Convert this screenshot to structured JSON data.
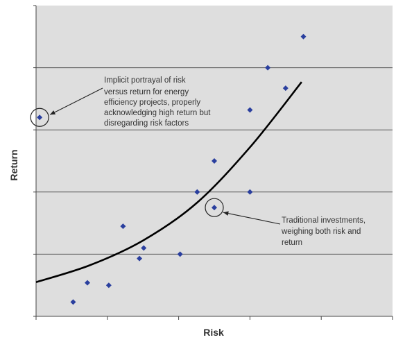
{
  "chart_data": {
    "type": "scatter",
    "xlabel": "Risk",
    "ylabel": "Return",
    "xlim": [
      0,
      10
    ],
    "ylim": [
      0,
      5
    ],
    "grid": "horizontal",
    "colors": {
      "plot_background": "#dedede",
      "points": "#2a3f9e",
      "curve": "#000000",
      "gridlines": "#555555"
    },
    "points": [
      {
        "x": 0.1,
        "y": 3.2
      },
      {
        "x": 1.04,
        "y": 0.23
      },
      {
        "x": 1.44,
        "y": 0.54
      },
      {
        "x": 2.04,
        "y": 0.5
      },
      {
        "x": 2.44,
        "y": 1.45
      },
      {
        "x": 2.9,
        "y": 0.93
      },
      {
        "x": 3.02,
        "y": 1.1
      },
      {
        "x": 4.04,
        "y": 1.0
      },
      {
        "x": 4.52,
        "y": 2.0
      },
      {
        "x": 5.0,
        "y": 2.5
      },
      {
        "x": 5.0,
        "y": 1.75
      },
      {
        "x": 6.0,
        "y": 2.0
      },
      {
        "x": 6.0,
        "y": 3.32
      },
      {
        "x": 6.5,
        "y": 4.0
      },
      {
        "x": 7.0,
        "y": 3.67
      },
      {
        "x": 7.5,
        "y": 4.5
      }
    ],
    "curve": {
      "type": "exponential",
      "points": [
        [
          0,
          0.55
        ],
        [
          1.5,
          0.82
        ],
        [
          3,
          1.22
        ],
        [
          4.5,
          1.82
        ],
        [
          6,
          2.72
        ],
        [
          7.45,
          3.77
        ]
      ]
    },
    "highlighted_points": [
      0,
      10
    ],
    "annotations": [
      {
        "lines": [
          "Implicit  portrayal  of  risk",
          "versus  return  for  energy",
          "efficiency  projects,  properly",
          "acknowledging  high  return  but",
          "disregarding  risk  factors"
        ],
        "points_to": 0
      },
      {
        "lines": [
          "Traditional  investments,",
          "weighing  both  risk  and",
          "return"
        ],
        "points_to": 10
      }
    ]
  }
}
